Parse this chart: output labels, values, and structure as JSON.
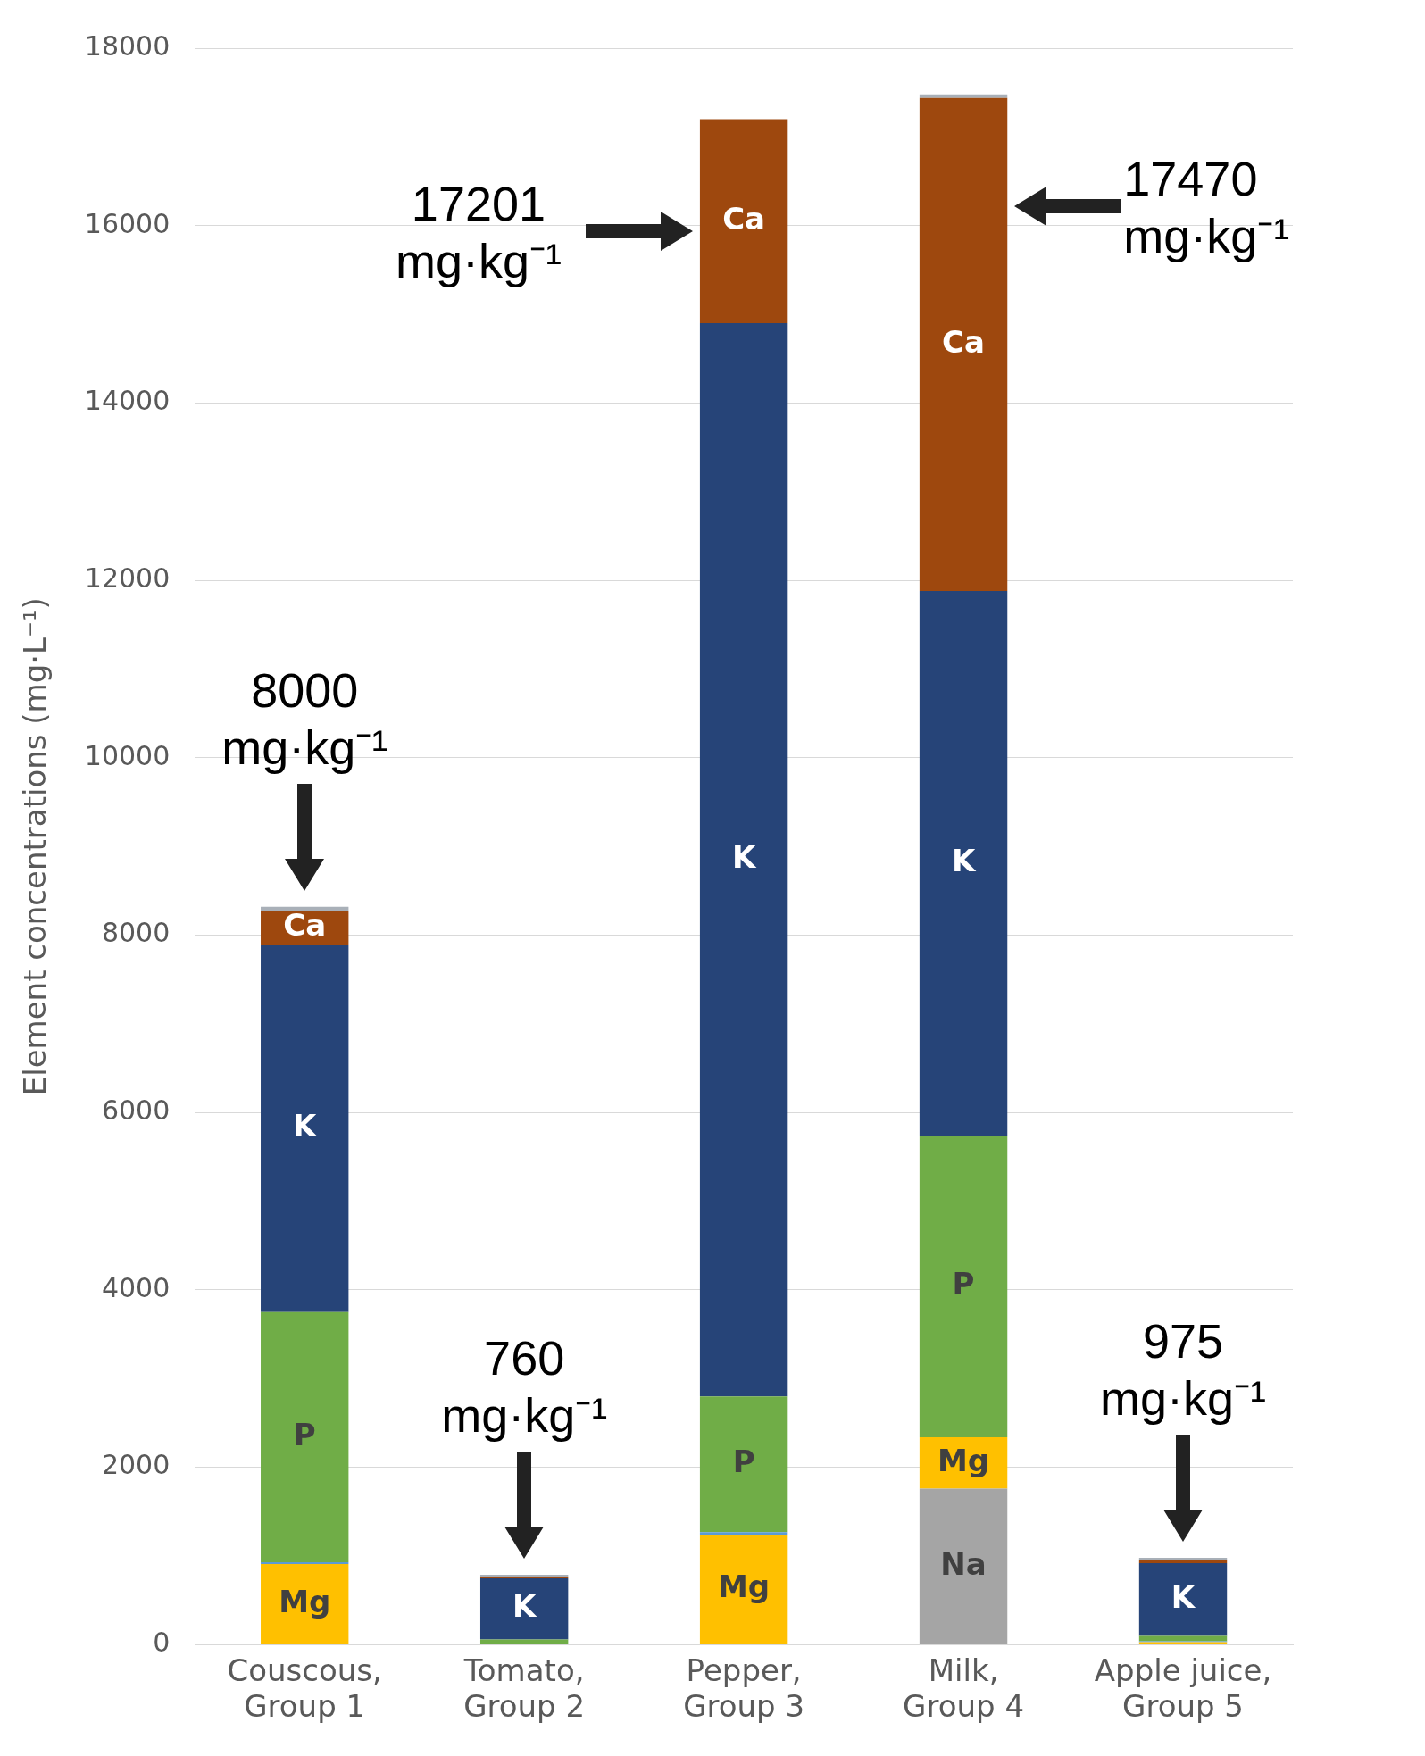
{
  "chart_data": {
    "type": "bar",
    "stacked": true,
    "ylabel": "Element concentrations (mg·L⁻¹)",
    "categories": [
      "Couscous, Group 1",
      "Tomato, Group 2",
      "Pepper, Group 3",
      "Milk, Group 4",
      "Apple juice, Group 5"
    ],
    "series": [
      {
        "name": "Na",
        "color": "#a5a5a5",
        "values": [
          null,
          0,
          null,
          1760,
          null
        ]
      },
      {
        "name": "Mg",
        "color": "#ffc000",
        "values": [
          910,
          0,
          1240,
          580,
          30
        ]
      },
      {
        "color": "#5b9bd5",
        "values": [
          20,
          0,
          30,
          0,
          10
        ]
      },
      {
        "name": "P",
        "color": "#70ad47",
        "values": [
          2820,
          60,
          1530,
          3390,
          60
        ]
      },
      {
        "name": "K",
        "color": "#264478",
        "values": [
          4140,
          690,
          12100,
          6150,
          820
        ]
      },
      {
        "name": "Ca",
        "color": "#9e480e",
        "values": [
          380,
          10,
          2300,
          5560,
          30
        ]
      },
      {
        "color": "#a9b0b8",
        "values": [
          50,
          30,
          null,
          40,
          30
        ]
      }
    ],
    "ylim": [
      0,
      18000
    ],
    "yticks": [
      0,
      2000,
      4000,
      6000,
      8000,
      10000,
      12000,
      14000,
      16000,
      18000
    ],
    "grid": "y",
    "legend": false,
    "annotations": [
      "8000 mg·kg⁻¹",
      "760 mg·kg⁻¹",
      "17201 mg·kg⁻¹",
      "17470 mg·kg⁻¹",
      "975 mg·kg⁻¹"
    ]
  }
}
